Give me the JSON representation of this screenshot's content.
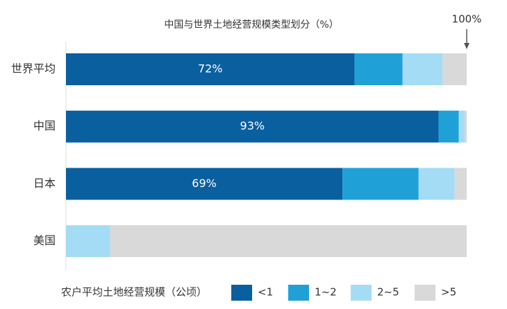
{
  "chart_data": {
    "type": "stacked_barh",
    "title": "中国与世界土地经营规模类型划分（%）",
    "legend_title": "农户平均土地经营规模（公顷）",
    "categories": [
      "世界平均",
      "中国",
      "日本",
      "美国"
    ],
    "xlim": [
      0,
      100
    ],
    "annotations": [
      {
        "text": "100%",
        "x": 100
      }
    ],
    "legend": "bottom",
    "series": [
      {
        "name": "<1",
        "color": "#0a5f9e",
        "values": [
          72,
          93,
          69,
          0
        ],
        "value_labels": [
          "72%",
          "93%",
          "69%",
          null
        ]
      },
      {
        "name": "1~2",
        "color": "#1fa1d8",
        "values": [
          12,
          5,
          19,
          0
        ]
      },
      {
        "name": "2~5",
        "color": "#a5dcf5",
        "values": [
          10,
          1.5,
          9,
          11
        ]
      },
      {
        "name": ">5",
        "color": "#d9d9d9",
        "values": [
          6,
          0.5,
          3,
          89
        ]
      }
    ]
  }
}
